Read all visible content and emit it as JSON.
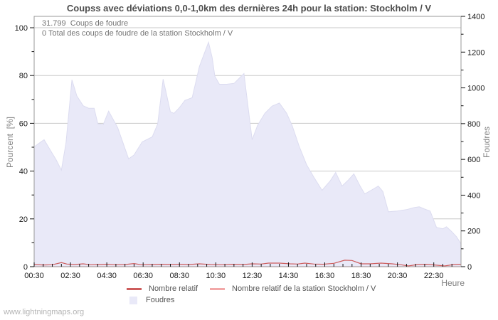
{
  "watermark": "www.lightningmaps.org",
  "chart_data": {
    "type": "area",
    "title": "Coupss avec déviations 0,0-1,0km des dernières 24h pour la station: Stockholm / V",
    "annotations": {
      "total_strikes_line": "31.799  Coups de foudre",
      "station_total_line": "0 Total des coups de foudre de la station Stockholm / V"
    },
    "x_axis": {
      "label": "Heure",
      "tick_labels": [
        "00:30",
        "02:30",
        "04:30",
        "06:30",
        "08:30",
        "10:30",
        "12:30",
        "14:30",
        "16:30",
        "18:30",
        "20:30",
        "22:30"
      ],
      "tick_hours": [
        0.5,
        2.5,
        4.5,
        6.5,
        8.5,
        10.5,
        12.5,
        14.5,
        16.5,
        18.5,
        20.5,
        22.5
      ],
      "minor_step_hours": 0.5,
      "range_hours": [
        0.5,
        24
      ],
      "grid": false
    },
    "y_left": {
      "label": "Pourcent  [%]",
      "ticks": [
        0,
        20,
        40,
        60,
        80,
        100
      ],
      "minor_step": 10,
      "range": [
        0,
        100
      ],
      "grid": true
    },
    "y_right": {
      "label": "Foudres",
      "ticks": [
        0,
        200,
        400,
        600,
        800,
        1000,
        1200,
        1400
      ],
      "minor_step": 100,
      "range": [
        0,
        1400
      ]
    },
    "series": [
      {
        "name": "Foudres",
        "type": "area",
        "axis": "right",
        "color": "#e9e9f8",
        "stroke": "#dcdcf0",
        "points": [
          [
            0.5,
            670
          ],
          [
            0.9,
            700
          ],
          [
            1.05,
            710
          ],
          [
            1.4,
            650
          ],
          [
            1.7,
            600
          ],
          [
            2.0,
            540
          ],
          [
            2.25,
            690
          ],
          [
            2.58,
            1045
          ],
          [
            2.85,
            955
          ],
          [
            3.2,
            900
          ],
          [
            3.5,
            886
          ],
          [
            3.8,
            886
          ],
          [
            4.0,
            800
          ],
          [
            4.3,
            794
          ],
          [
            4.6,
            870
          ],
          [
            5.1,
            778
          ],
          [
            5.7,
            603
          ],
          [
            6.0,
            625
          ],
          [
            6.45,
            698
          ],
          [
            7.0,
            726
          ],
          [
            7.3,
            798
          ],
          [
            7.6,
            1049
          ],
          [
            8.0,
            866
          ],
          [
            8.2,
            858
          ],
          [
            8.5,
            890
          ],
          [
            8.8,
            930
          ],
          [
            9.2,
            945
          ],
          [
            9.6,
            1120
          ],
          [
            10.1,
            1255
          ],
          [
            10.3,
            1170
          ],
          [
            10.45,
            1065
          ],
          [
            10.7,
            1020
          ],
          [
            11.1,
            1020
          ],
          [
            11.5,
            1025
          ],
          [
            12.05,
            1080
          ],
          [
            12.5,
            710
          ],
          [
            12.8,
            790
          ],
          [
            13.2,
            858
          ],
          [
            13.6,
            898
          ],
          [
            14.0,
            915
          ],
          [
            14.4,
            858
          ],
          [
            14.7,
            790
          ],
          [
            15.1,
            670
          ],
          [
            15.5,
            570
          ],
          [
            15.9,
            500
          ],
          [
            16.35,
            427
          ],
          [
            16.8,
            480
          ],
          [
            17.1,
            527
          ],
          [
            17.45,
            451
          ],
          [
            17.8,
            485
          ],
          [
            18.1,
            519
          ],
          [
            18.45,
            450
          ],
          [
            18.7,
            407
          ],
          [
            19.1,
            430
          ],
          [
            19.45,
            451
          ],
          [
            19.7,
            420
          ],
          [
            20.0,
            307
          ],
          [
            20.5,
            311
          ],
          [
            21.0,
            319
          ],
          [
            21.4,
            330
          ],
          [
            21.7,
            335
          ],
          [
            22.0,
            322
          ],
          [
            22.3,
            311
          ],
          [
            22.65,
            220
          ],
          [
            23.0,
            212
          ],
          [
            23.2,
            223
          ],
          [
            23.5,
            195
          ],
          [
            23.75,
            168
          ],
          [
            24.0,
            128
          ]
        ]
      },
      {
        "name": "Nombre relatif",
        "type": "line",
        "axis": "left",
        "color": "#cd5c5c",
        "points": [
          [
            0.5,
            0.9
          ],
          [
            1.0,
            0.7
          ],
          [
            1.5,
            0.8
          ],
          [
            2.0,
            1.7
          ],
          [
            2.3,
            1.1
          ],
          [
            2.7,
            0.9
          ],
          [
            3.2,
            1.2
          ],
          [
            3.6,
            0.8
          ],
          [
            4.1,
            0.9
          ],
          [
            4.5,
            1.0
          ],
          [
            5.0,
            0.8
          ],
          [
            5.5,
            0.9
          ],
          [
            6.0,
            1.3
          ],
          [
            6.4,
            0.8
          ],
          [
            7.0,
            0.9
          ],
          [
            7.5,
            1.0
          ],
          [
            8.0,
            0.9
          ],
          [
            8.5,
            1.0
          ],
          [
            9.0,
            0.9
          ],
          [
            9.6,
            1.2
          ],
          [
            10.2,
            0.9
          ],
          [
            10.8,
            0.8
          ],
          [
            11.4,
            1.0
          ],
          [
            12.0,
            0.9
          ],
          [
            12.5,
            1.2
          ],
          [
            13.0,
            1.1
          ],
          [
            13.4,
            1.5
          ],
          [
            14.0,
            1.5
          ],
          [
            14.6,
            1.2
          ],
          [
            15.0,
            1.1
          ],
          [
            15.4,
            1.5
          ],
          [
            15.9,
            1.1
          ],
          [
            16.4,
            1.0
          ],
          [
            17.0,
            1.4
          ],
          [
            17.6,
            2.7
          ],
          [
            18.0,
            2.6
          ],
          [
            18.5,
            1.2
          ],
          [
            19.0,
            1.2
          ],
          [
            19.6,
            1.5
          ],
          [
            20.2,
            1.2
          ],
          [
            20.7,
            0.8
          ],
          [
            21.1,
            0.3
          ],
          [
            21.6,
            0.9
          ],
          [
            22.1,
            1.0
          ],
          [
            22.7,
            0.6
          ],
          [
            23.1,
            0.3
          ],
          [
            23.6,
            0.9
          ],
          [
            24.0,
            1.0
          ]
        ]
      },
      {
        "name": "Nombre relatif de la station Stockholm / V",
        "type": "line",
        "axis": "left",
        "color": "#f2a8a8",
        "points": [
          [
            0.5,
            0
          ],
          [
            24.0,
            0
          ]
        ]
      }
    ],
    "legend": {
      "position": "bottom",
      "items": [
        {
          "label": "Nombre relatif",
          "swatch": "line",
          "color": "#cd5c5c"
        },
        {
          "label": "Nombre relatif de la station Stockholm / V",
          "swatch": "line",
          "color": "#f2a8a8"
        },
        {
          "label": "Foudres",
          "swatch": "area",
          "color": "#e9e9f8"
        }
      ]
    },
    "style_colors": {
      "grid": "#c8c8c8",
      "frame": "#9a9a9a",
      "ticks": "#111111"
    }
  }
}
